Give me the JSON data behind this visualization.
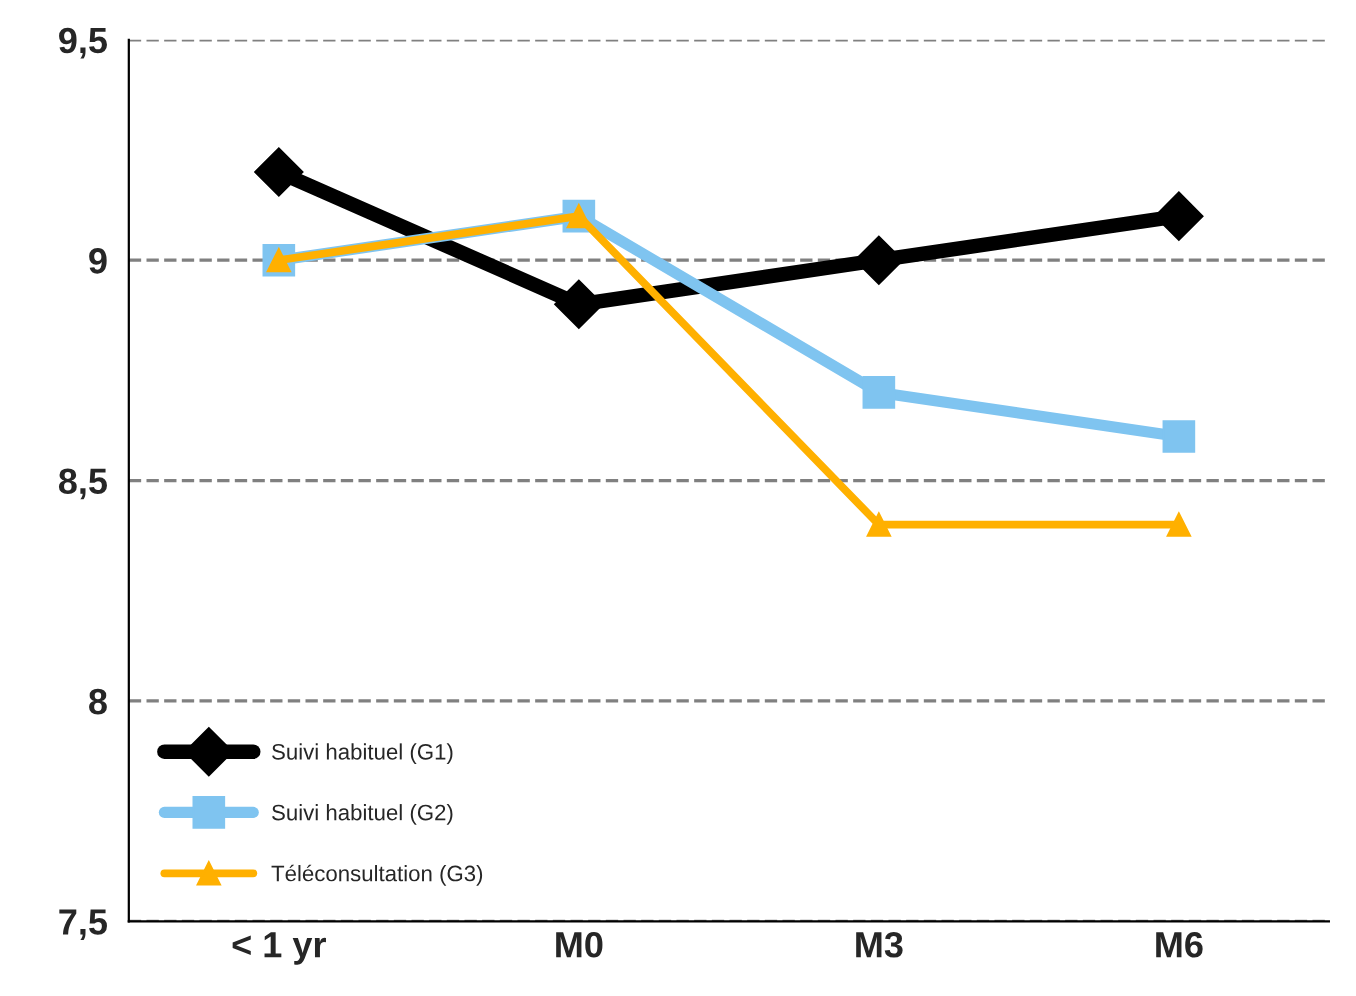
{
  "chart_data": {
    "type": "line",
    "categories": [
      "< 1 yr",
      "M0",
      "M3",
      "M6"
    ],
    "series": [
      {
        "name": "Suivi habituel (G1)",
        "color": "#000000",
        "marker": "diamond",
        "values": [
          9.2,
          8.9,
          9.0,
          9.1
        ]
      },
      {
        "name": "Suivi habituel (G2)",
        "color": "#7fc4f0",
        "marker": "square",
        "values": [
          9.0,
          9.1,
          8.7,
          8.6
        ]
      },
      {
        "name": "Téléconsultation (G3)",
        "color": "#ffb000",
        "marker": "triangle",
        "values": [
          9.0,
          9.1,
          8.4,
          8.4
        ]
      }
    ],
    "ylim": [
      7.5,
      9.5
    ],
    "yticks": [
      {
        "value": 7.5,
        "label": "7,5"
      },
      {
        "value": 8,
        "label": "8"
      },
      {
        "value": 8.5,
        "label": "8,5"
      },
      {
        "value": 9,
        "label": "9"
      },
      {
        "value": 9.5,
        "label": "9,5"
      }
    ],
    "grid": "y",
    "legend": "bottom left",
    "line_style": "solid"
  }
}
